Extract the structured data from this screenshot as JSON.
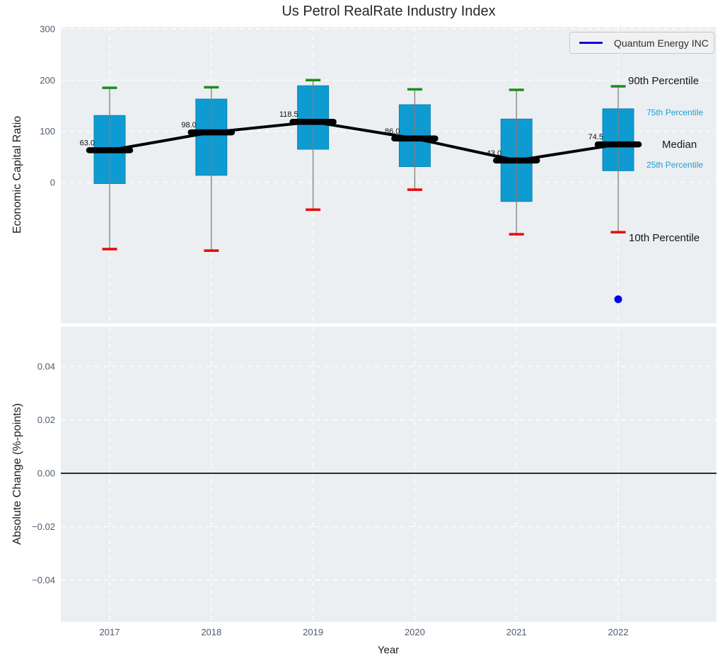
{
  "title": "Us Petrol RealRate Industry Index",
  "legend": {
    "label": "Quantum Energy INC"
  },
  "annotations": {
    "p90": "90th Percentile",
    "p75": "75th Percentile",
    "median": "Median",
    "p25": "25th Percentile",
    "p10": "10th Percentile"
  },
  "colors": {
    "box_fill": "#0e9bd1",
    "box_edge": "#0b86b8",
    "p90_cap": "#1e8c1e",
    "p10_cap": "#ee0000",
    "median_line": "#000000",
    "whisker": "#7f7f7f",
    "company": "#0000ee",
    "plot_bg": "#ebeff1",
    "grid": "#ffffff",
    "tick_label": "#4c5b70",
    "annotation_blue": "#1d9fd9",
    "zero_line": "#111111"
  },
  "chart_data": [
    {
      "type": "boxplot",
      "title": "Us Petrol RealRate Industry Index",
      "xlabel": "Year",
      "ylabel": "Economic Capital Ratio",
      "categories": [
        "2017",
        "2018",
        "2019",
        "2020",
        "2021",
        "2022"
      ],
      "ylim": [
        -275,
        304
      ],
      "yticks": [
        300,
        200,
        100,
        0
      ],
      "ytick_labels": [
        "300",
        "200",
        "100",
        "0"
      ],
      "grid": true,
      "legend_position": "upper right",
      "series": [
        {
          "name": "90th Percentile",
          "values": [
            185,
            186,
            200,
            182,
            181,
            188
          ]
        },
        {
          "name": "75th Percentile",
          "values": [
            131,
            163,
            189,
            152,
            124,
            144
          ]
        },
        {
          "name": "Median",
          "values": [
            63.0,
            98.0,
            118.5,
            86.0,
            43.0,
            74.5
          ]
        },
        {
          "name": "25th Percentile",
          "values": [
            -2,
            14,
            65,
            31,
            -37,
            23
          ]
        },
        {
          "name": "10th Percentile",
          "values": [
            -130,
            -133,
            -53,
            -14,
            -101,
            -97
          ]
        }
      ],
      "median_labels": [
        "63.0",
        "98.0",
        "118.5",
        "86.0",
        "43.0",
        "74.5"
      ],
      "company_series": {
        "name": "Quantum Energy INC",
        "points": [
          {
            "x": "2022",
            "y": -228
          }
        ]
      }
    },
    {
      "type": "line",
      "xlabel": "Year",
      "ylabel": "Absolute Change (%-points)",
      "categories": [
        "2017",
        "2018",
        "2019",
        "2020",
        "2021",
        "2022"
      ],
      "ylim": [
        -0.0556,
        0.0548
      ],
      "yticks": [
        0.04,
        0.02,
        0.0,
        -0.02,
        -0.04
      ],
      "ytick_labels": [
        "0.04",
        "0.02",
        "0.00",
        "−0.02",
        "−0.04"
      ],
      "zero_line": 0.0,
      "grid": true,
      "series": []
    }
  ]
}
